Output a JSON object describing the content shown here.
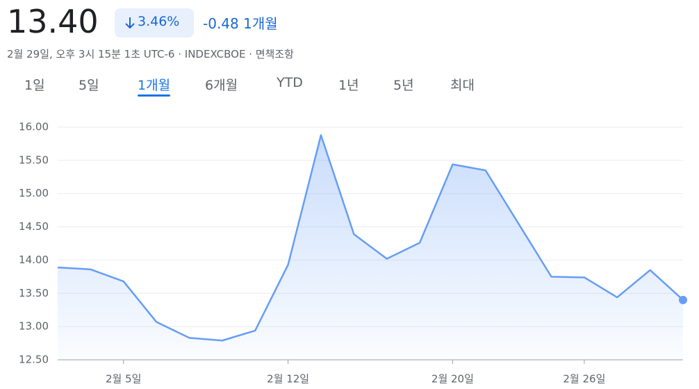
{
  "header": {
    "price": "13.40",
    "change_percent": "3.46%",
    "change": "-0.48",
    "period": "1개월",
    "subtitle": "2월 29일, 오후 3시 15분 1초 UTC-6 · INDEXCBOE · 면책조항"
  },
  "tabs": {
    "items": [
      "1일",
      "5일",
      "1개월",
      "6개월",
      "YTD",
      "1년",
      "5년",
      "최대"
    ],
    "active": "1개월"
  },
  "chart_data": {
    "type": "area",
    "categories": [
      null,
      null,
      "2월 5일",
      null,
      null,
      null,
      null,
      "2월 12일",
      null,
      null,
      null,
      null,
      "2월 20일",
      null,
      null,
      null,
      "2월 26일",
      null,
      null,
      null
    ],
    "values": [
      13.89,
      13.86,
      13.68,
      13.07,
      12.83,
      12.79,
      12.94,
      13.93,
      15.88,
      14.39,
      14.02,
      14.26,
      15.44,
      15.35,
      14.55,
      13.75,
      13.74,
      13.44,
      13.85,
      13.4
    ],
    "color": "#669df6",
    "ylim": [
      12.5,
      16.0
    ],
    "yticks": [
      {
        "value": 12.5,
        "label": "12.50"
      },
      {
        "value": 13,
        "label": "13.00"
      },
      {
        "value": 13.5,
        "label": "13.50"
      },
      {
        "value": 14,
        "label": "14.00"
      },
      {
        "value": 14.5,
        "label": "14.50"
      },
      {
        "value": 15,
        "label": "15.00"
      },
      {
        "value": 15.5,
        "label": "15.50"
      },
      {
        "value": 16,
        "label": "16.00"
      }
    ],
    "grid": true
  }
}
